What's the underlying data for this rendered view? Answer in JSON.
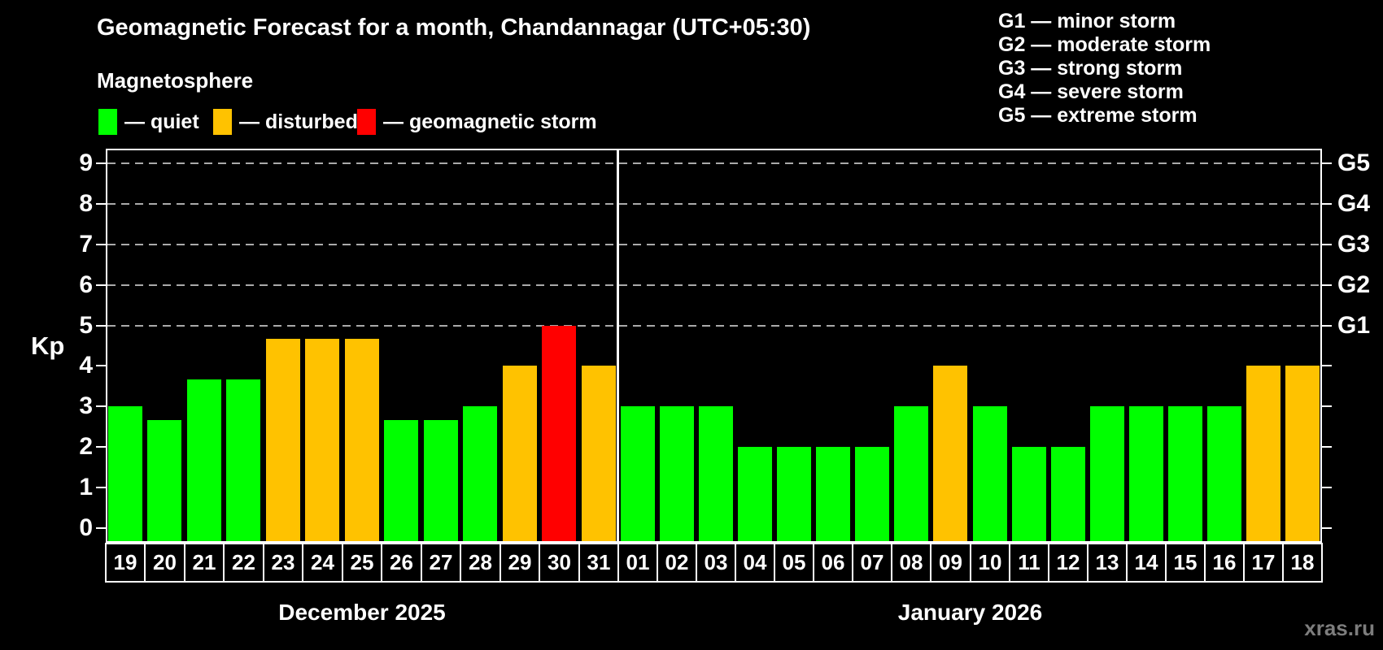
{
  "title": "Geomagnetic Forecast for a month, Chandannagar (UTC+05:30)",
  "subtitle": "Magnetosphere",
  "kp_axis_label": "Kp",
  "watermark": "xras.ru",
  "legend": [
    {
      "key": "quiet",
      "label": "— quiet"
    },
    {
      "key": "disturbed",
      "label": "— disturbed"
    },
    {
      "key": "storm",
      "label": "— geomagnetic storm"
    }
  ],
  "g_legend": [
    "G1 — minor storm",
    "G2 — moderate storm",
    "G3 — strong storm",
    "G4 — severe storm",
    "G5 — extreme storm"
  ],
  "colors": {
    "quiet": "#00ff00",
    "disturbed": "#ffc200",
    "storm": "#ff0000",
    "grid": "#aaaaaa",
    "axis": "#ffffff",
    "watermark": "#7d7d7d",
    "background": "#000000"
  },
  "chart_data": {
    "type": "bar",
    "ylabel": "Kp",
    "ylim": [
      0,
      9
    ],
    "y_ticks": [
      0,
      1,
      2,
      3,
      4,
      5,
      6,
      7,
      8,
      9
    ],
    "g_ticks": [
      {
        "kp": 5,
        "label": "G1"
      },
      {
        "kp": 6,
        "label": "G2"
      },
      {
        "kp": 7,
        "label": "G3"
      },
      {
        "kp": 8,
        "label": "G4"
      },
      {
        "kp": 9,
        "label": "G5"
      }
    ],
    "grid": "dashed horizontal gridlines at Kp 5,6,7,8,9",
    "legend_position": "top",
    "months": [
      {
        "label": "December 2025",
        "days": [
          {
            "date": "19",
            "kp": 3,
            "status": "quiet"
          },
          {
            "date": "20",
            "kp": 2.67,
            "status": "quiet"
          },
          {
            "date": "21",
            "kp": 3.67,
            "status": "quiet"
          },
          {
            "date": "22",
            "kp": 3.67,
            "status": "quiet"
          },
          {
            "date": "23",
            "kp": 4.67,
            "status": "disturbed"
          },
          {
            "date": "24",
            "kp": 4.67,
            "status": "disturbed"
          },
          {
            "date": "25",
            "kp": 4.67,
            "status": "disturbed"
          },
          {
            "date": "26",
            "kp": 2.67,
            "status": "quiet"
          },
          {
            "date": "27",
            "kp": 2.67,
            "status": "quiet"
          },
          {
            "date": "28",
            "kp": 3,
            "status": "quiet"
          },
          {
            "date": "29",
            "kp": 4,
            "status": "disturbed"
          },
          {
            "date": "30",
            "kp": 5,
            "status": "storm"
          },
          {
            "date": "31",
            "kp": 4,
            "status": "disturbed"
          }
        ]
      },
      {
        "label": "January 2026",
        "days": [
          {
            "date": "01",
            "kp": 3,
            "status": "quiet"
          },
          {
            "date": "02",
            "kp": 3,
            "status": "quiet"
          },
          {
            "date": "03",
            "kp": 3,
            "status": "quiet"
          },
          {
            "date": "04",
            "kp": 2,
            "status": "quiet"
          },
          {
            "date": "05",
            "kp": 2,
            "status": "quiet"
          },
          {
            "date": "06",
            "kp": 2,
            "status": "quiet"
          },
          {
            "date": "07",
            "kp": 2,
            "status": "quiet"
          },
          {
            "date": "08",
            "kp": 3,
            "status": "quiet"
          },
          {
            "date": "09",
            "kp": 4,
            "status": "disturbed"
          },
          {
            "date": "10",
            "kp": 3,
            "status": "quiet"
          },
          {
            "date": "11",
            "kp": 2,
            "status": "quiet"
          },
          {
            "date": "12",
            "kp": 2,
            "status": "quiet"
          },
          {
            "date": "13",
            "kp": 3,
            "status": "quiet"
          },
          {
            "date": "14",
            "kp": 3,
            "status": "quiet"
          },
          {
            "date": "15",
            "kp": 3,
            "status": "quiet"
          },
          {
            "date": "16",
            "kp": 3,
            "status": "quiet"
          },
          {
            "date": "17",
            "kp": 4,
            "status": "disturbed"
          },
          {
            "date": "18",
            "kp": 4,
            "status": "disturbed"
          }
        ]
      }
    ]
  }
}
